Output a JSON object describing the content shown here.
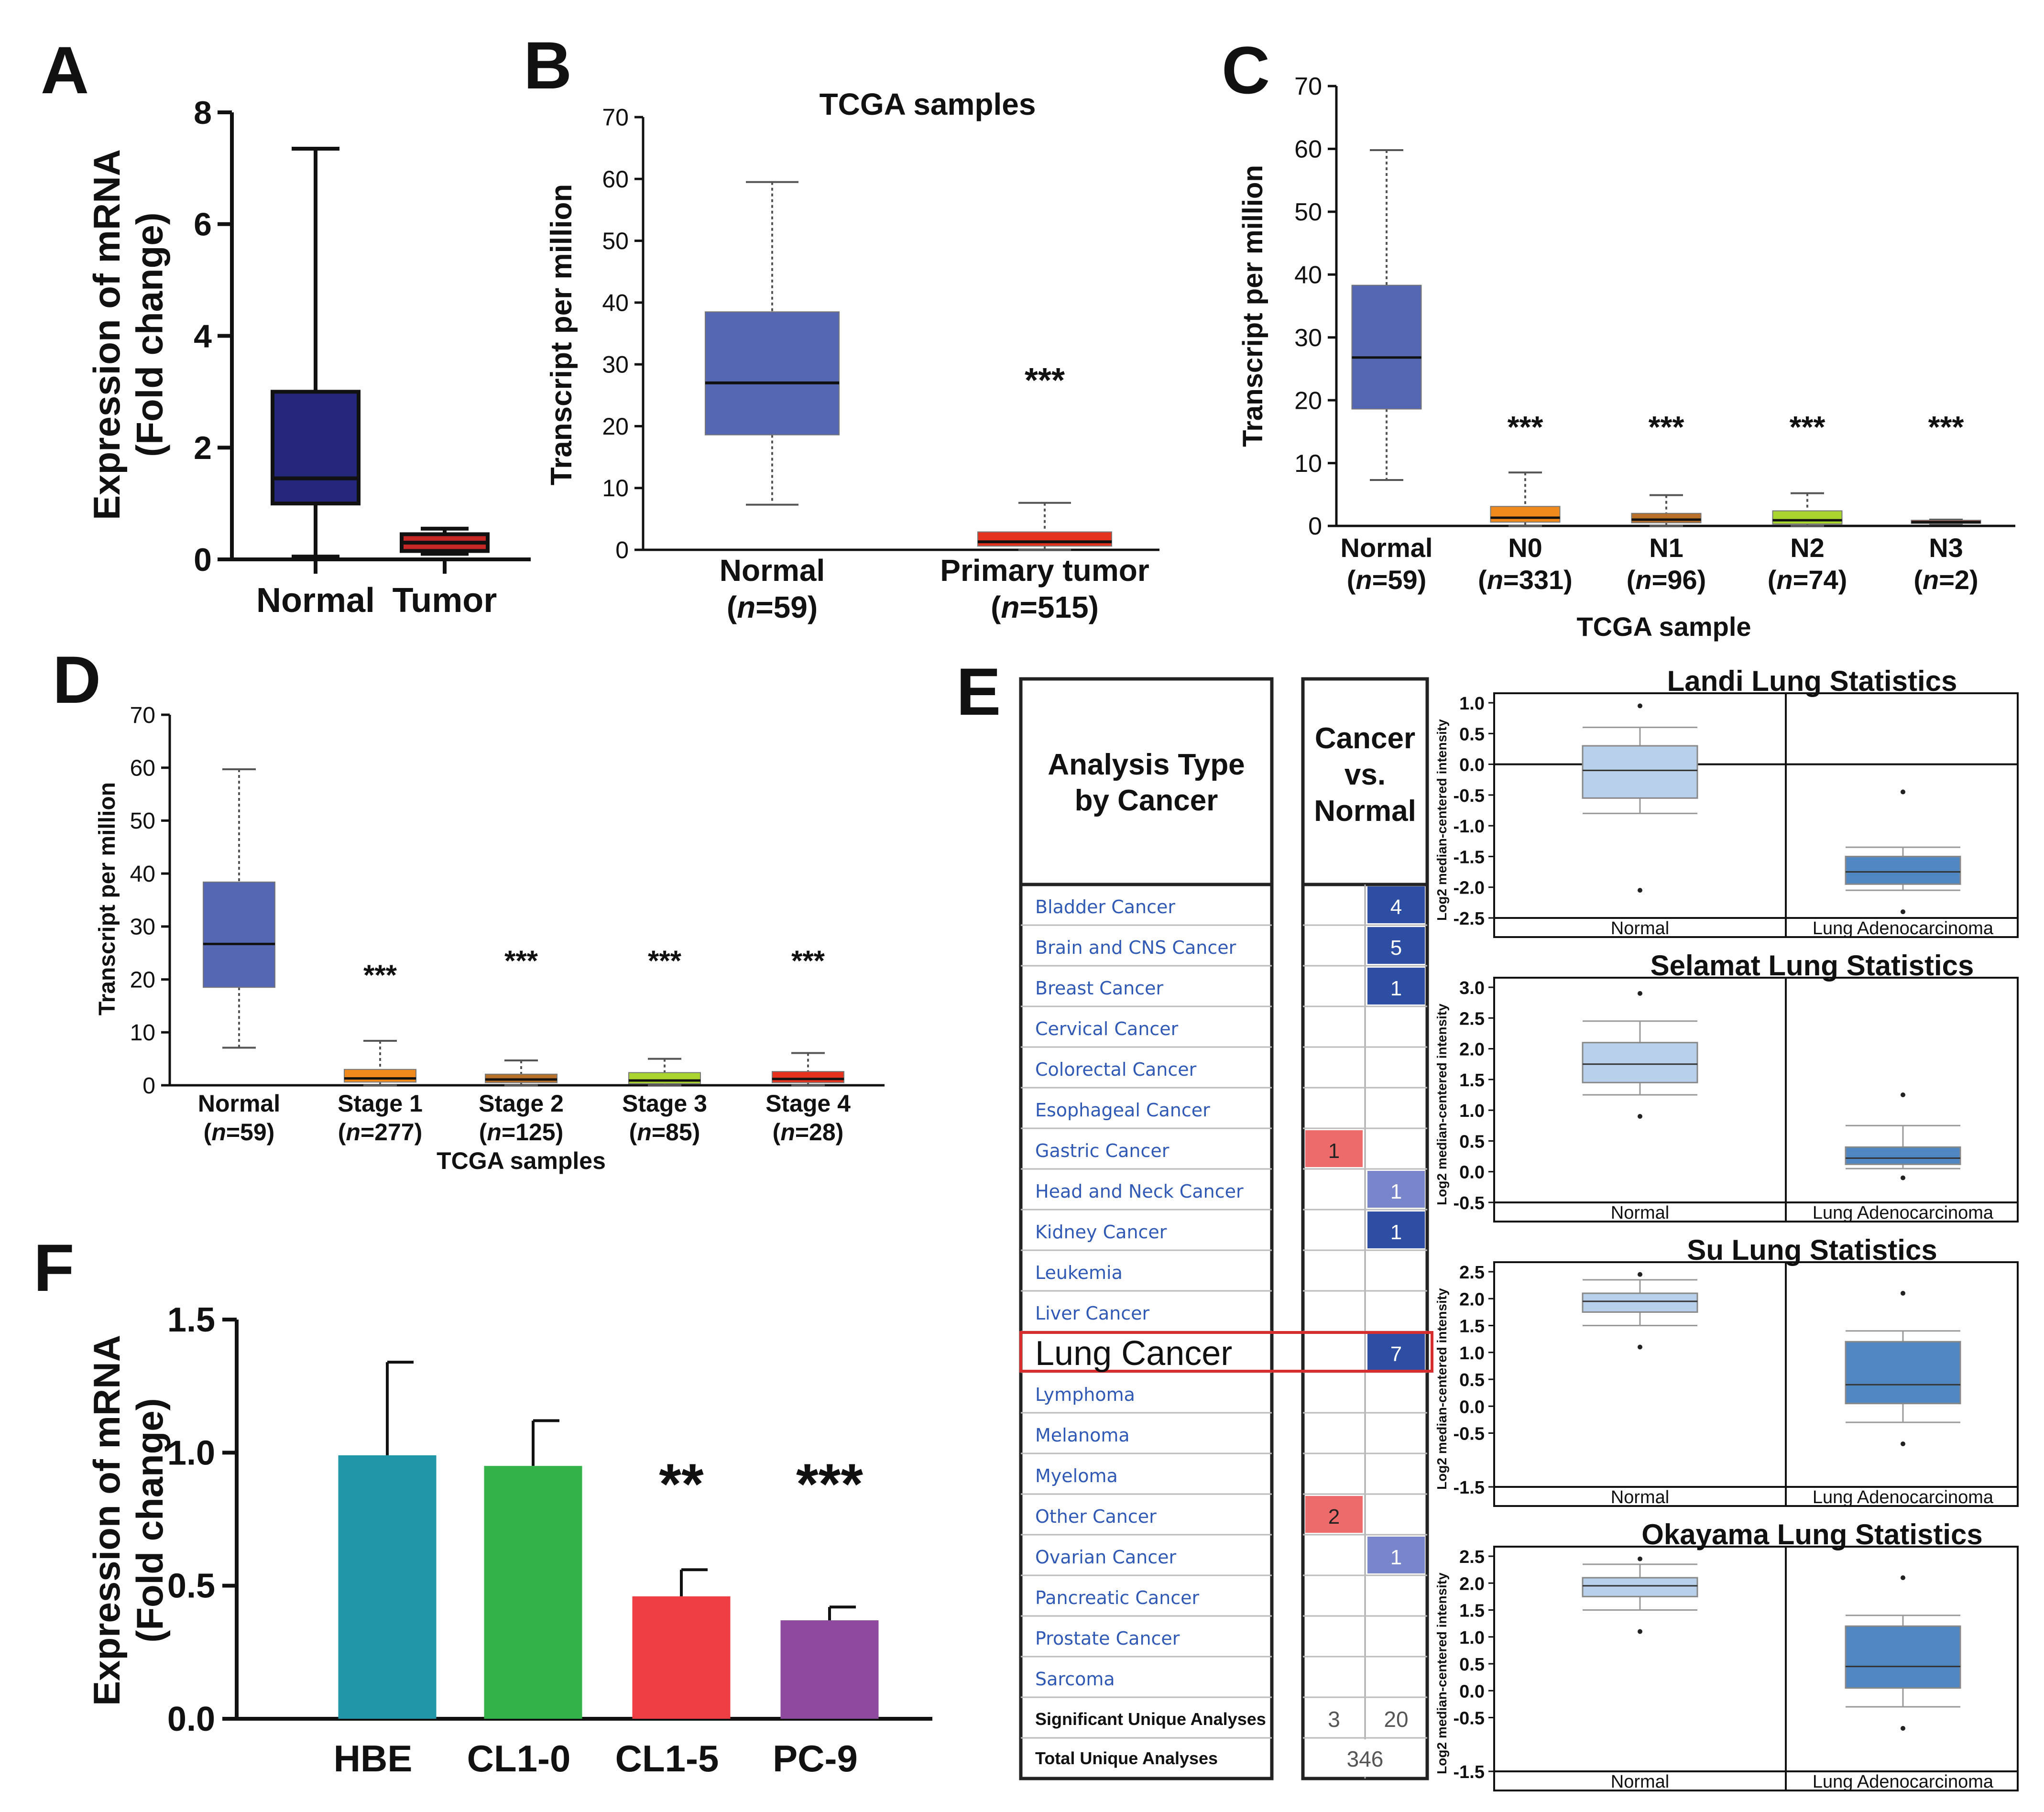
{
  "chart_data": [
    {
      "id": "A",
      "type": "box",
      "panel_label": "A",
      "ylabel": "Expression of mRNA",
      "ylabel2": "(Fold change)",
      "ylim": [
        0,
        8
      ],
      "yticks": [
        0,
        2,
        4,
        6,
        8
      ],
      "categories": [
        "Normal",
        "Tumor"
      ],
      "series": [
        {
          "name": "Normal",
          "min": 0.05,
          "q1": 1.0,
          "median": 1.45,
          "q3": 3.0,
          "max": 7.35,
          "color": "#25287a"
        },
        {
          "name": "Tumor",
          "min": 0.1,
          "q1": 0.15,
          "median": 0.3,
          "q3": 0.45,
          "max": 0.55,
          "color": "#c62828"
        }
      ]
    },
    {
      "id": "B",
      "type": "box",
      "panel_label": "B",
      "title": "TCGA  samples",
      "ylabel": "Transcript per million",
      "ylim": [
        0,
        70
      ],
      "yticks": [
        0,
        10,
        20,
        30,
        40,
        50,
        60,
        70
      ],
      "categories": [
        "Normal",
        "Primary tumor"
      ],
      "category_n": [
        "59",
        "515"
      ],
      "series": [
        {
          "name": "Normal",
          "min": 7.3,
          "q1": 18.6,
          "median": 27.0,
          "q3": 38.5,
          "max": 59.5,
          "color": "#5566b3"
        },
        {
          "name": "Primary tumor",
          "min": 0,
          "q1": 0.6,
          "median": 1.3,
          "q3": 2.9,
          "max": 7.6,
          "color": "#e5321e",
          "sig": "***"
        }
      ]
    },
    {
      "id": "C",
      "type": "box",
      "panel_label": "C",
      "ylabel": "Transcript per million",
      "xlabel": "TCGA sample",
      "ylim": [
        0,
        70
      ],
      "yticks": [
        0,
        10,
        20,
        30,
        40,
        50,
        60,
        70
      ],
      "categories": [
        "Normal",
        "N0",
        "N1",
        "N2",
        "N3"
      ],
      "category_n": [
        "59",
        "331",
        "96",
        "74",
        "2"
      ],
      "series": [
        {
          "name": "Normal",
          "min": 7.3,
          "q1": 18.6,
          "median": 26.8,
          "q3": 38.3,
          "max": 59.8,
          "color": "#5566b3"
        },
        {
          "name": "N0",
          "min": 0,
          "q1": 0.6,
          "median": 1.3,
          "q3": 3.1,
          "max": 8.5,
          "color": "#f08a1c",
          "sig": "***"
        },
        {
          "name": "N1",
          "min": 0,
          "q1": 0.5,
          "median": 1.0,
          "q3": 2.0,
          "max": 4.9,
          "color": "#b8702a",
          "sig": "***"
        },
        {
          "name": "N2",
          "min": 0,
          "q1": 0.3,
          "median": 0.9,
          "q3": 2.4,
          "max": 5.2,
          "color": "#aad42e",
          "sig": "***"
        },
        {
          "name": "N3",
          "min": 0.3,
          "q1": 0.4,
          "median": 0.6,
          "q3": 0.9,
          "max": 1.0,
          "color": "#e5321e",
          "sig": "***"
        }
      ]
    },
    {
      "id": "D",
      "type": "box",
      "panel_label": "D",
      "ylabel": "Transcript per million",
      "xlabel": "TCGA samples",
      "ylim": [
        0,
        70
      ],
      "yticks": [
        0,
        10,
        20,
        30,
        40,
        50,
        60,
        70
      ],
      "categories": [
        "Normal",
        "Stage 1",
        "Stage 2",
        "Stage 3",
        "Stage 4"
      ],
      "category_n": [
        "59",
        "277",
        "125",
        "85",
        "28"
      ],
      "series": [
        {
          "name": "Normal",
          "min": 7.1,
          "q1": 18.5,
          "median": 26.7,
          "q3": 38.4,
          "max": 59.7,
          "color": "#5566b3"
        },
        {
          "name": "Stage 1",
          "min": 0,
          "q1": 0.6,
          "median": 1.3,
          "q3": 3.0,
          "max": 8.4,
          "color": "#f08a1c",
          "sig": "***"
        },
        {
          "name": "Stage 2",
          "min": 0,
          "q1": 0.5,
          "median": 1.1,
          "q3": 2.1,
          "max": 4.7,
          "color": "#b8702a",
          "sig": "***"
        },
        {
          "name": "Stage 3",
          "min": 0,
          "q1": 0.3,
          "median": 0.9,
          "q3": 2.4,
          "max": 5.0,
          "color": "#aad42e",
          "sig": "***"
        },
        {
          "name": "Stage 4",
          "min": 0,
          "q1": 0.5,
          "median": 1.2,
          "q3": 2.6,
          "max": 6.1,
          "color": "#e5321e",
          "sig": "***"
        }
      ]
    },
    {
      "id": "F",
      "type": "bar",
      "panel_label": "F",
      "ylabel": "Expression of mRNA",
      "ylabel2": "(Fold change)",
      "ylim": [
        0,
        1.5
      ],
      "yticks": [
        "0.0",
        "0.5",
        "1.0",
        "1.5"
      ],
      "categories": [
        "HBE",
        "CL1-0",
        "CL1-5",
        "PC-9"
      ],
      "values": [
        0.99,
        0.95,
        0.46,
        0.37
      ],
      "errors": [
        0.35,
        0.17,
        0.1,
        0.05
      ],
      "colors": [
        "#2196a8",
        "#33b24a",
        "#ee3e43",
        "#8e4a9e"
      ],
      "sig": [
        "",
        "",
        "**",
        "***"
      ]
    },
    {
      "id": "E",
      "type": "table",
      "panel_label": "E",
      "header_left": [
        "Analysis Type",
        "by Cancer"
      ],
      "header_right": [
        "Cancer",
        "vs.",
        "Normal"
      ],
      "rows": [
        {
          "name": "Bladder Cancer",
          "up": "",
          "down": "4"
        },
        {
          "name": "Brain and CNS Cancer",
          "up": "",
          "down": "5"
        },
        {
          "name": "Breast Cancer",
          "up": "",
          "down": "1"
        },
        {
          "name": "Cervical Cancer",
          "up": "",
          "down": ""
        },
        {
          "name": "Colorectal Cancer",
          "up": "",
          "down": ""
        },
        {
          "name": "Esophageal Cancer",
          "up": "",
          "down": ""
        },
        {
          "name": "Gastric Cancer",
          "up": "1",
          "down": ""
        },
        {
          "name": "Head and Neck Cancer",
          "up": "",
          "down": "1"
        },
        {
          "name": "Kidney Cancer",
          "up": "",
          "down": "1"
        },
        {
          "name": "Leukemia",
          "up": "",
          "down": ""
        },
        {
          "name": "Liver Cancer",
          "up": "",
          "down": ""
        },
        {
          "name": "Lung Cancer",
          "up": "",
          "down": "7",
          "highlight": true
        },
        {
          "name": "Lymphoma",
          "up": "",
          "down": ""
        },
        {
          "name": "Melanoma",
          "up": "",
          "down": ""
        },
        {
          "name": "Myeloma",
          "up": "",
          "down": ""
        },
        {
          "name": "Other Cancer",
          "up": "2",
          "down": ""
        },
        {
          "name": "Ovarian Cancer",
          "up": "",
          "down": "1"
        },
        {
          "name": "Pancreatic Cancer",
          "up": "",
          "down": ""
        },
        {
          "name": "Prostate Cancer",
          "up": "",
          "down": ""
        },
        {
          "name": "Sarcoma",
          "up": "",
          "down": ""
        }
      ],
      "footer": [
        {
          "label": "Significant Unique Analyses",
          "up": "3",
          "down": "20"
        },
        {
          "label": "Total Unique Analyses",
          "total": "346"
        }
      ]
    },
    {
      "id": "E1",
      "type": "box",
      "title": "Landi Lung Statistics",
      "ylabel": "Log2 median-centered intensity",
      "ylim": [
        -2.5,
        1.0
      ],
      "yticks": [
        "1.0",
        "0.5",
        "0.0",
        "-0.5",
        "-1.0",
        "-1.5",
        "-2.0",
        "-2.5"
      ],
      "categories": [
        "Normal",
        "Lung Adenocarcinoma"
      ],
      "series": [
        {
          "name": "Normal",
          "min": -0.8,
          "q1": -0.55,
          "median": -0.1,
          "q3": 0.3,
          "max": 0.6,
          "outliers": [
            0.95,
            -2.05
          ],
          "color": "#b9d0ea"
        },
        {
          "name": "Lung Adenocarcinoma",
          "min": -2.05,
          "q1": -1.95,
          "median": -1.75,
          "q3": -1.5,
          "max": -1.35,
          "outliers": [
            -0.45,
            -2.4
          ],
          "color": "#4f87c2"
        }
      ]
    },
    {
      "id": "E2",
      "type": "box",
      "title": "Selamat Lung Statistics",
      "ylabel": "Log2 median-centered intensity",
      "ylim": [
        -0.5,
        3.0
      ],
      "yticks": [
        "3.0",
        "2.5",
        "2.0",
        "1.5",
        "1.0",
        "0.5",
        "0.0",
        "-0.5"
      ],
      "categories": [
        "Normal",
        "Lung Adenocarcinoma"
      ],
      "series": [
        {
          "name": "Normal",
          "min": 1.25,
          "q1": 1.45,
          "median": 1.75,
          "q3": 2.1,
          "max": 2.45,
          "outliers": [
            2.9,
            0.9
          ],
          "color": "#b9d0ea"
        },
        {
          "name": "Lung Adenocarcinoma",
          "min": 0.05,
          "q1": 0.12,
          "median": 0.22,
          "q3": 0.4,
          "max": 0.75,
          "outliers": [
            1.25,
            -0.1
          ],
          "color": "#4f87c2"
        }
      ]
    },
    {
      "id": "E3",
      "type": "box",
      "title": "Su Lung Statistics",
      "ylabel": "Log2 median-centered intensity",
      "ylim": [
        -1.5,
        2.5
      ],
      "yticks": [
        "2.5",
        "2.0",
        "1.5",
        "1.0",
        "0.5",
        "0.0",
        "-0.5",
        "-1.5"
      ],
      "categories": [
        "Normal",
        "Lung Adenocarcinoma"
      ],
      "series": [
        {
          "name": "Normal",
          "min": 1.5,
          "q1": 1.75,
          "median": 1.95,
          "q3": 2.1,
          "max": 2.35,
          "outliers": [
            2.45,
            1.1
          ],
          "color": "#b9d0ea"
        },
        {
          "name": "Lung Adenocarcinoma",
          "min": -0.3,
          "q1": 0.05,
          "median": 0.4,
          "q3": 1.2,
          "max": 1.4,
          "outliers": [
            2.1,
            -0.7
          ],
          "color": "#4f87c2"
        }
      ]
    },
    {
      "id": "E4",
      "type": "box",
      "title": "Okayama Lung Statistics",
      "ylabel": "Log2 median-centered intensity",
      "ylim": [
        -1.5,
        2.5
      ],
      "yticks": [
        "2.5",
        "2.0",
        "1.5",
        "1.0",
        "0.5",
        "0.0",
        "-0.5",
        "-1.5"
      ],
      "categories": [
        "Normal",
        "Lung Adenocarcinoma"
      ],
      "series": [
        {
          "name": "Normal",
          "min": 1.5,
          "q1": 1.75,
          "median": 1.95,
          "q3": 2.1,
          "max": 2.35,
          "outliers": [
            2.45,
            1.1
          ],
          "color": "#b9d0ea"
        },
        {
          "name": "Lung Adenocarcinoma",
          "min": -0.3,
          "q1": 0.05,
          "median": 0.45,
          "q3": 1.2,
          "max": 1.4,
          "outliers": [
            2.1,
            -0.7
          ],
          "color": "#4f87c2"
        }
      ]
    }
  ],
  "colors": {
    "oncomine_up": "#ee6b6b",
    "oncomine_down": "#2e4ea3",
    "highlight_border": "#d62e2e"
  }
}
